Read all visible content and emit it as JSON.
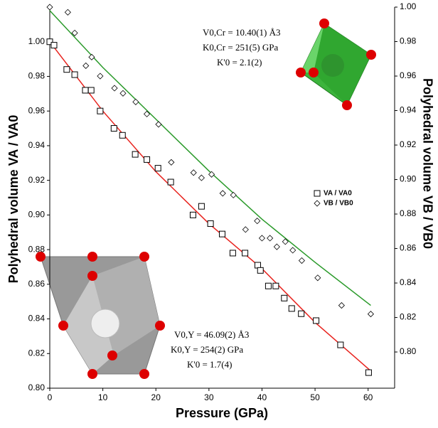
{
  "chart_data": {
    "type": "scatter",
    "x_label": "Pressure (GPa)",
    "y_label": "Polyhedral volume  VA / VA0",
    "y2_label": "Polyhedral volume  VB / VB0",
    "xlim": [
      0,
      65
    ],
    "xticks": [
      0,
      10,
      20,
      30,
      40,
      50,
      60
    ],
    "ylim": [
      0.8,
      1.02
    ],
    "yticks": [
      {
        "value": 0.8,
        "label": "0.80"
      },
      {
        "value": 0.82,
        "label": "0.82"
      },
      {
        "value": 0.84,
        "label": "0.84"
      },
      {
        "value": 0.86,
        "label": "0.86"
      },
      {
        "value": 0.88,
        "label": "0.88"
      },
      {
        "value": 0.9,
        "label": "0.90"
      },
      {
        "value": 0.92,
        "label": "0.92"
      },
      {
        "value": 0.94,
        "label": "0.94"
      },
      {
        "value": 0.96,
        "label": "0.96"
      },
      {
        "value": 0.98,
        "label": "0.98"
      },
      {
        "value": 1,
        "label": "1.00"
      }
    ],
    "y2lim": [
      0.779,
      1.0
    ],
    "y2ticks": [
      {
        "value": 0.8,
        "label": "0.80"
      },
      {
        "value": 0.82,
        "label": "0.82"
      },
      {
        "value": 0.84,
        "label": "0.84"
      },
      {
        "value": 0.86,
        "label": "0.86"
      },
      {
        "value": 0.88,
        "label": "0.88"
      },
      {
        "value": 0.9,
        "label": "0.90"
      },
      {
        "value": 0.92,
        "label": "0.92"
      },
      {
        "value": 0.94,
        "label": "0.94"
      },
      {
        "value": 0.96,
        "label": "0.96"
      },
      {
        "value": 0.98,
        "label": "0.98"
      },
      {
        "value": 1,
        "label": "1.00"
      }
    ],
    "series": [
      {
        "name": "VA / VA0",
        "marker": "square",
        "axis": "y",
        "x": [
          0,
          0.8,
          3.2,
          4.7,
          6.7,
          7.8,
          9.5,
          12.1,
          13.7,
          16.1,
          18.3,
          20.4,
          22.8,
          27.0,
          28.6,
          30.3,
          32.5,
          34.5,
          36.8,
          39.2,
          39.7,
          41.2,
          42.6,
          44.2,
          45.6,
          47.4,
          50.2,
          54.8,
          60.1
        ],
        "values": [
          1.0,
          0.998,
          0.984,
          0.981,
          0.972,
          0.972,
          0.96,
          0.95,
          0.946,
          0.935,
          0.932,
          0.927,
          0.919,
          0.9,
          0.905,
          0.895,
          0.889,
          0.878,
          0.878,
          0.871,
          0.868,
          0.859,
          0.859,
          0.852,
          0.846,
          0.843,
          0.839,
          0.825,
          0.809
        ]
      },
      {
        "name": "VB / VB0",
        "marker": "diamond",
        "axis": "y2",
        "x": [
          0,
          3.4,
          4.7,
          6.8,
          7.9,
          9.5,
          12.2,
          13.8,
          16.2,
          18.3,
          20.5,
          22.9,
          27.1,
          28.6,
          30.5,
          32.6,
          34.6,
          36.9,
          39.1,
          40.0,
          41.5,
          42.8,
          44.4,
          45.8,
          47.5,
          50.5,
          55.0,
          60.5
        ],
        "values": [
          1.0,
          0.997,
          0.985,
          0.966,
          0.971,
          0.96,
          0.953,
          0.95,
          0.945,
          0.938,
          0.932,
          0.91,
          0.904,
          0.901,
          0.903,
          0.892,
          0.891,
          0.871,
          0.876,
          0.866,
          0.866,
          0.861,
          0.864,
          0.859,
          0.853,
          0.843,
          0.827,
          0.822
        ]
      }
    ],
    "fits": [
      {
        "color": "#e8231e",
        "axis": "y",
        "x": [
          0,
          10,
          20,
          30,
          40,
          50,
          60.5
        ],
        "values": [
          1.0,
          0.96,
          0.925,
          0.895,
          0.869,
          0.838,
          0.81
        ]
      },
      {
        "color": "#2a9a2a",
        "axis": "y2",
        "x": [
          0,
          10,
          20,
          30,
          40,
          50,
          60.5
        ],
        "values": [
          0.998,
          0.965,
          0.935,
          0.905,
          0.877,
          0.852,
          0.827
        ]
      }
    ],
    "annotations": [
      "V0,Cr = 10.40(1) Å3",
      "K0,Cr = 251(5) GPa",
      "K'0 = 2.1(2)",
      "V0,Y = 46.09(2) Å3",
      "K0,Y = 254(2) GPa",
      "K'0 = 1.7(4)"
    ]
  }
}
